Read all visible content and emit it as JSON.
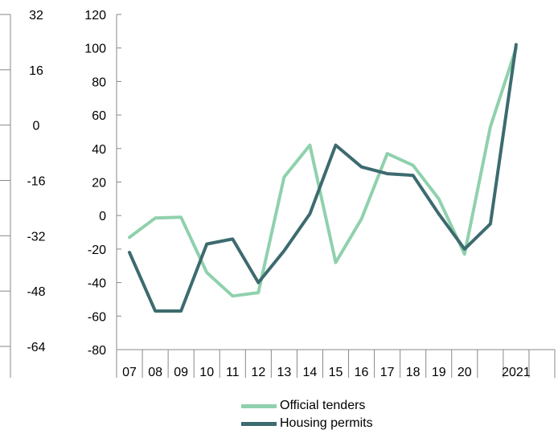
{
  "chart_data": {
    "type": "line",
    "categories": [
      "07",
      "08",
      "09",
      "10",
      "11",
      "12",
      "13",
      "14",
      "15",
      "16",
      "17",
      "18",
      "19",
      "20",
      "",
      "2021",
      ""
    ],
    "left_axis": {
      "ylim": [
        -64,
        32
      ],
      "ticks": [
        "32",
        "16",
        "0",
        "-16",
        "-32",
        "-48",
        "-64"
      ]
    },
    "right_axis": {
      "ylim": [
        -80,
        120
      ],
      "ticks": [
        "120",
        "100",
        "80",
        "60",
        "40",
        "20",
        "0",
        "-20",
        "-40",
        "-60",
        "-80"
      ]
    },
    "grid": false,
    "legend_position": "bottom",
    "series": [
      {
        "name": "Official tenders",
        "color": "#8fd1ad",
        "values": [
          -13,
          -1.5,
          -1,
          -34,
          -48,
          -46,
          23,
          42,
          -28,
          -2,
          37,
          30,
          10,
          -23,
          53,
          100,
          null
        ]
      },
      {
        "name": "Housing permits",
        "color": "#3d6b6f",
        "values": [
          -22,
          -57,
          -57,
          -17,
          -14,
          -40,
          -21,
          1,
          42,
          29,
          25,
          24,
          1,
          -20,
          -5,
          102,
          null
        ]
      }
    ]
  }
}
